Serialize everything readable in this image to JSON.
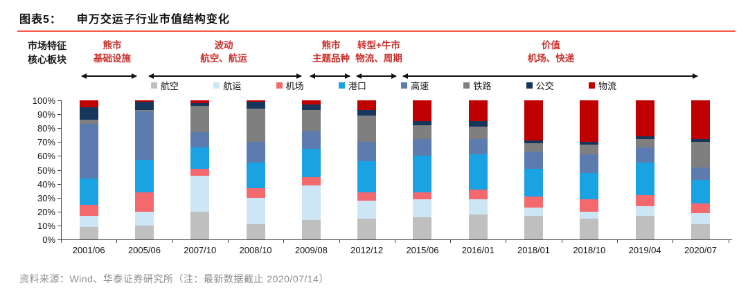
{
  "header": {
    "figure_label": "图表5：",
    "title": "申万交运子行业市值结构变化",
    "rule_color": "#f9564a"
  },
  "annotations": {
    "left_label_line1": "市场特征",
    "left_label_line2": "核心板块",
    "accent_color": "#c9302c",
    "phases": [
      {
        "line1": "熊市",
        "line2": "基础设施"
      },
      {
        "line1": "波动",
        "line2": "航空、航运"
      },
      {
        "line1": "熊市",
        "line2": "主题品种"
      },
      {
        "line1": "转型+牛市",
        "line2": "物流、周期"
      },
      {
        "line1": "价值",
        "line2": "机场、快递"
      }
    ]
  },
  "chart_data": {
    "type": "bar",
    "stacked": true,
    "unit": "%",
    "ylim": [
      0,
      100
    ],
    "yticks": [
      "100%",
      "90%",
      "80%",
      "70%",
      "60%",
      "50%",
      "40%",
      "30%",
      "20%",
      "10%",
      "0%"
    ],
    "legend_position": "top",
    "grid": false,
    "categories": [
      "2001/06",
      "2005/06",
      "2007/10",
      "2008/10",
      "2009/08",
      "2012/12",
      "2015/06",
      "2016/01",
      "2018/01",
      "2018/10",
      "2019/04",
      "2020/07"
    ],
    "series": [
      {
        "name": "航空",
        "color": "#bfbfbf",
        "values": [
          9,
          10,
          20,
          11,
          14,
          15,
          16,
          18,
          17,
          15,
          17,
          11
        ]
      },
      {
        "name": "航运",
        "color": "#cde6f5",
        "values": [
          8,
          10,
          26,
          19,
          25,
          13,
          13,
          11,
          6,
          5,
          7,
          8
        ]
      },
      {
        "name": "机场",
        "color": "#f4696e",
        "values": [
          8,
          14,
          5,
          7,
          6,
          6,
          5,
          7,
          8,
          9,
          8,
          7
        ]
      },
      {
        "name": "港口",
        "color": "#1aa3e3",
        "values": [
          19,
          23,
          15,
          18,
          20,
          22,
          26,
          25,
          20,
          19,
          23,
          17
        ]
      },
      {
        "name": "高速",
        "color": "#5c7cb0",
        "values": [
          39,
          35,
          11,
          15,
          13,
          14,
          12,
          11,
          12,
          13,
          11,
          9
        ]
      },
      {
        "name": "铁路",
        "color": "#7f7f7f",
        "values": [
          3,
          1,
          19,
          24,
          15,
          19,
          10,
          9,
          6,
          7,
          6,
          18
        ]
      },
      {
        "name": "公交",
        "color": "#16365c",
        "values": [
          9,
          6,
          2,
          5,
          4,
          4,
          3,
          4,
          2,
          2,
          2,
          2
        ]
      },
      {
        "name": "物流",
        "color": "#c00000",
        "values": [
          5,
          1,
          2,
          1,
          3,
          7,
          15,
          15,
          29,
          30,
          26,
          28
        ]
      }
    ]
  },
  "footer": {
    "source": "资料来源：Wind、华泰证券研究所（注：最新数据截止 2020/07/14）"
  }
}
